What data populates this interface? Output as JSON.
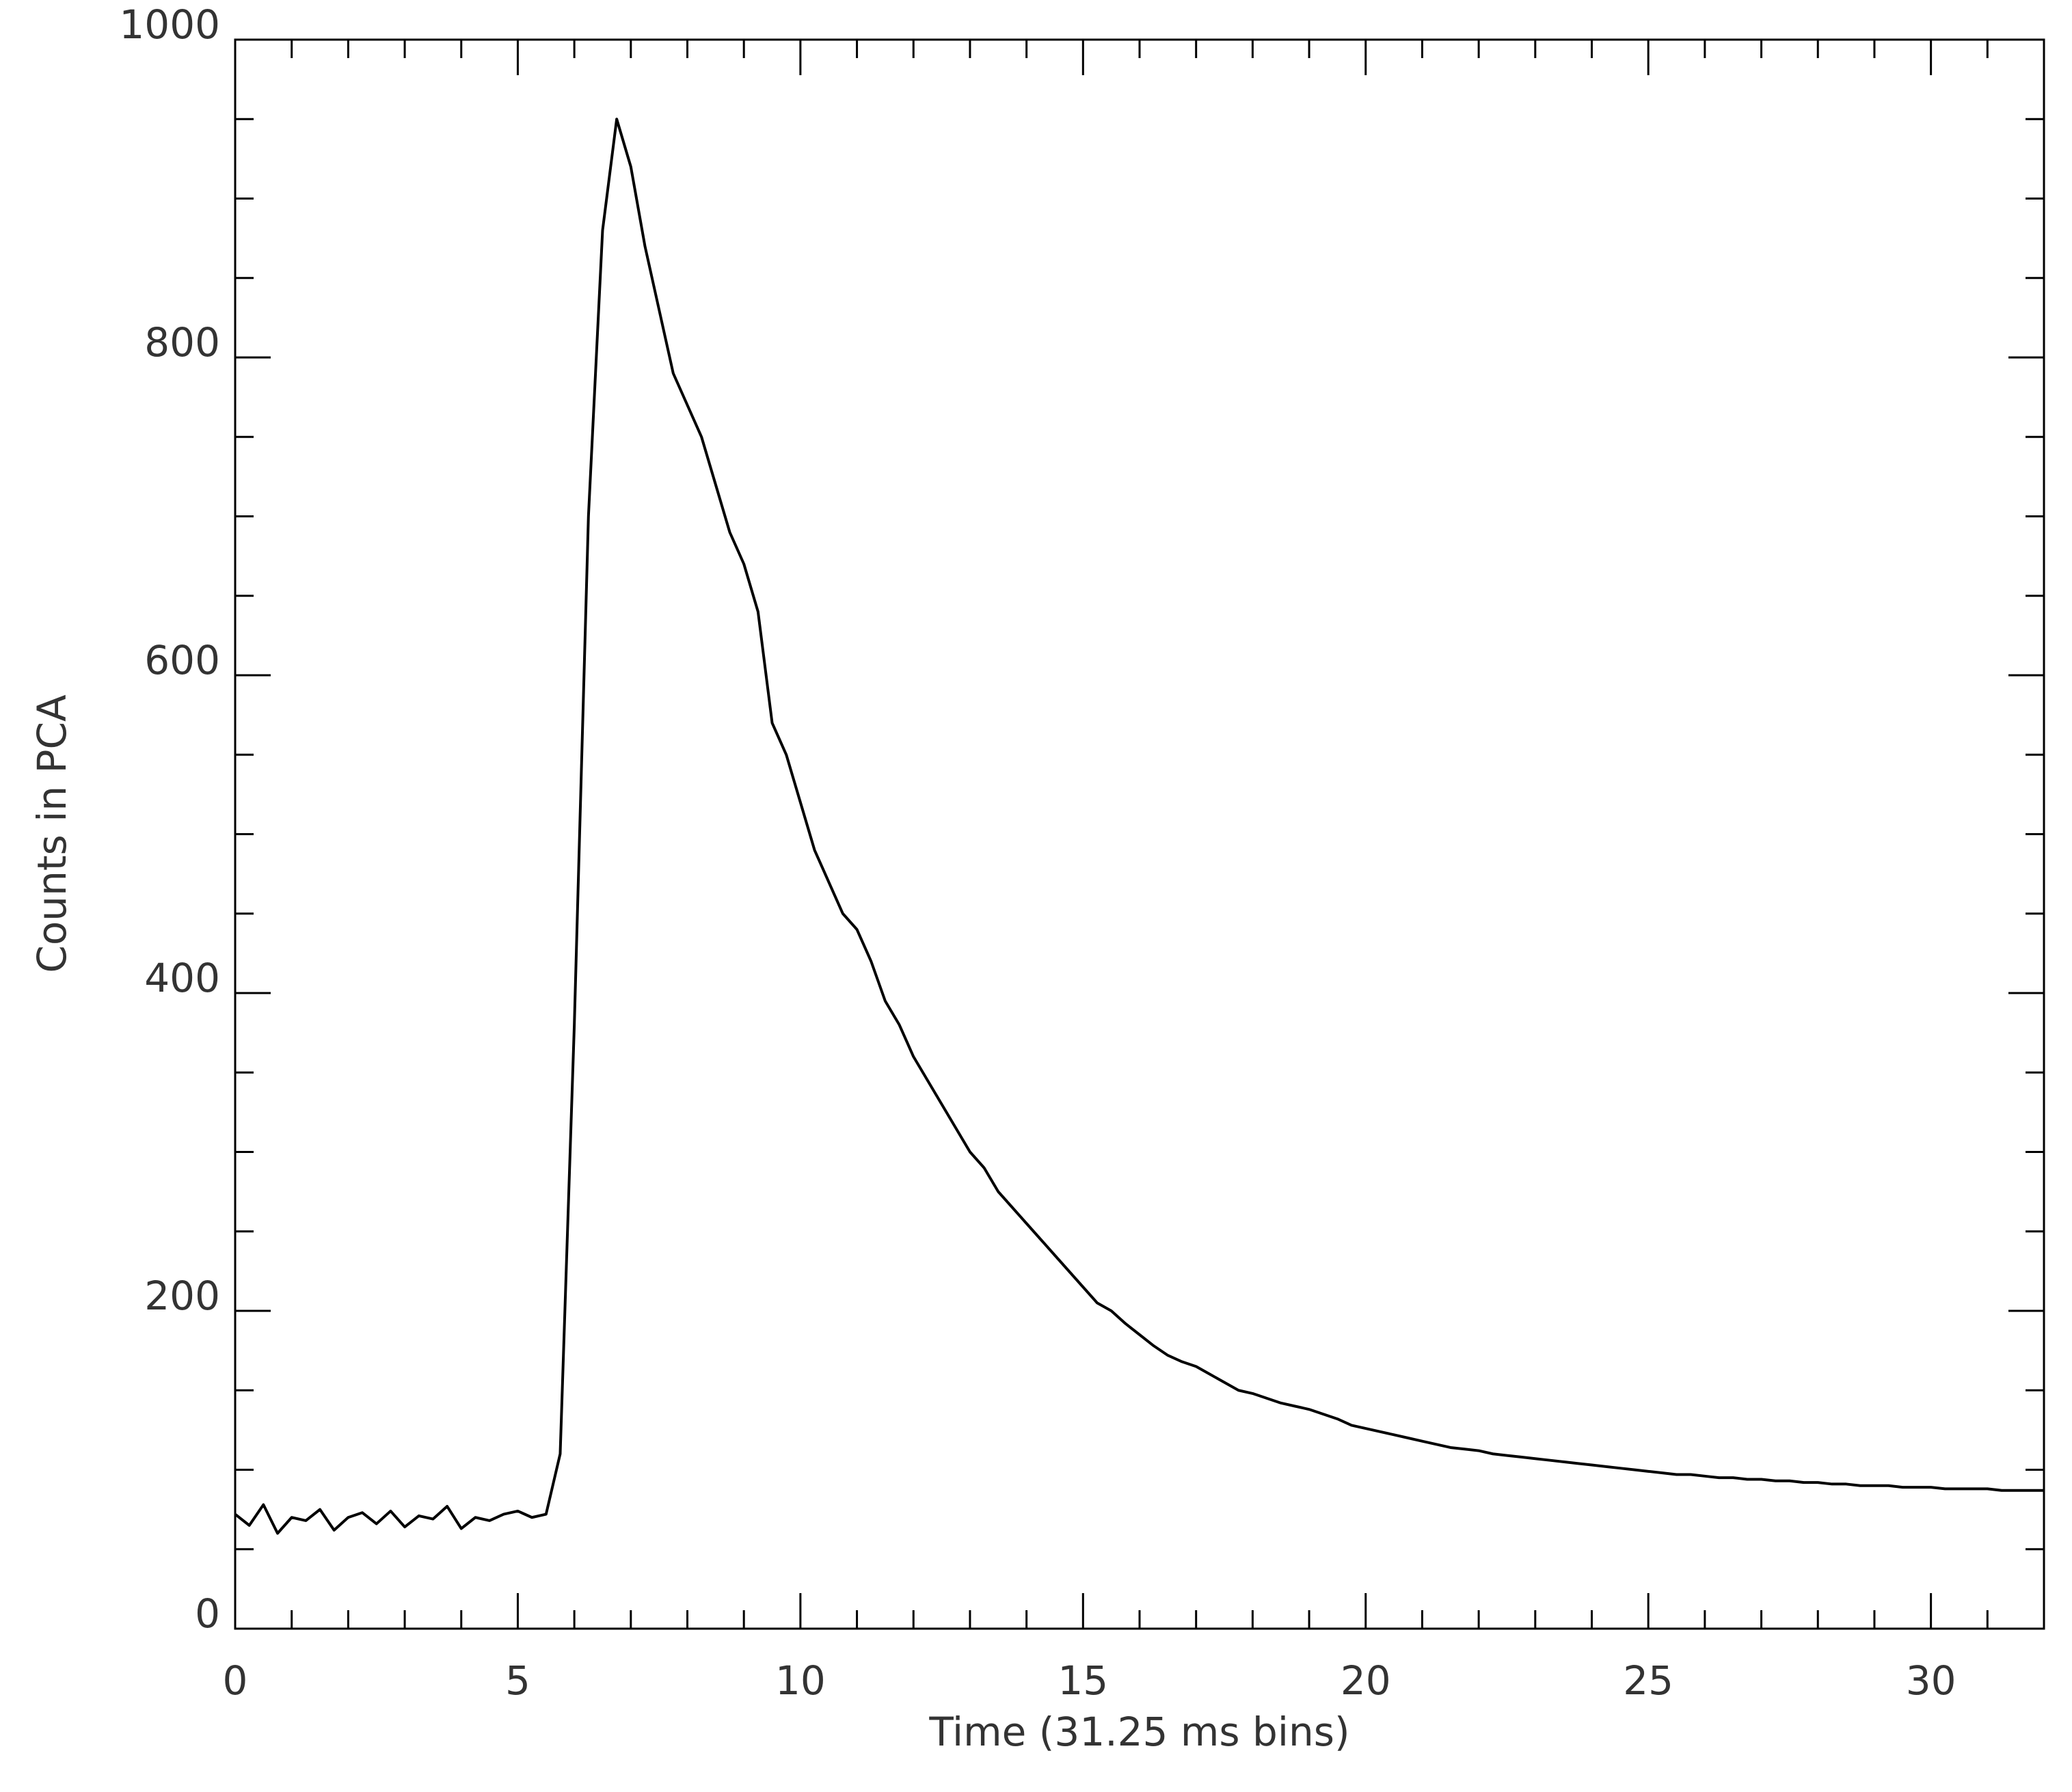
{
  "chart_data": {
    "type": "line",
    "x_label": "Time (31.25 ms bins)",
    "y_label": "Counts in PCA",
    "x": [
      0,
      0.25,
      0.5,
      0.75,
      1,
      1.25,
      1.5,
      1.75,
      2,
      2.25,
      2.5,
      2.75,
      3,
      3.25,
      3.5,
      3.75,
      4,
      4.25,
      4.5,
      4.75,
      5,
      5.25,
      5.5,
      5.75,
      6,
      6.25,
      6.5,
      6.75,
      7,
      7.25,
      7.5,
      7.75,
      8,
      8.25,
      8.5,
      8.75,
      9,
      9.25,
      9.5,
      9.75,
      10,
      10.25,
      10.5,
      10.75,
      11,
      11.25,
      11.5,
      11.75,
      12,
      12.25,
      12.5,
      12.75,
      13,
      13.25,
      13.5,
      13.75,
      14,
      14.25,
      14.5,
      14.75,
      15,
      15.25,
      15.5,
      15.75,
      16,
      16.25,
      16.5,
      16.75,
      17,
      17.25,
      17.5,
      17.75,
      18,
      18.25,
      18.5,
      18.75,
      19,
      19.25,
      19.5,
      19.75,
      20,
      20.25,
      20.5,
      20.75,
      21,
      21.25,
      21.5,
      21.75,
      22,
      22.25,
      22.5,
      22.75,
      23,
      23.25,
      23.5,
      23.75,
      24,
      24.25,
      24.5,
      24.75,
      25,
      25.25,
      25.5,
      25.75,
      26,
      26.25,
      26.5,
      26.75,
      27,
      27.25,
      27.5,
      27.75,
      28,
      28.25,
      28.5,
      28.75,
      29,
      29.25,
      29.5,
      29.75,
      30,
      30.25,
      30.5,
      30.75,
      31,
      31.25,
      31.5,
      31.75,
      32
    ],
    "series": [
      {
        "color": "#000000",
        "values": [
          72,
          65,
          78,
          60,
          70,
          68,
          75,
          62,
          70,
          73,
          66,
          74,
          64,
          71,
          69,
          77,
          63,
          70,
          68,
          72,
          74,
          70,
          72,
          110,
          380,
          700,
          880,
          950,
          920,
          870,
          830,
          790,
          770,
          750,
          720,
          690,
          670,
          640,
          570,
          550,
          520,
          490,
          470,
          450,
          440,
          420,
          395,
          380,
          360,
          345,
          330,
          315,
          300,
          290,
          275,
          265,
          255,
          245,
          235,
          225,
          215,
          205,
          200,
          192,
          185,
          178,
          172,
          168,
          165,
          160,
          155,
          150,
          148,
          145,
          142,
          140,
          138,
          135,
          132,
          128,
          126,
          124,
          122,
          120,
          118,
          116,
          114,
          113,
          112,
          110,
          109,
          108,
          107,
          106,
          105,
          104,
          103,
          102,
          101,
          100,
          99,
          98,
          97,
          97,
          96,
          95,
          95,
          94,
          94,
          93,
          93,
          92,
          92,
          91,
          91,
          90,
          90,
          90,
          89,
          89,
          89,
          88,
          88,
          88,
          88,
          87,
          87,
          87,
          87
        ]
      }
    ],
    "xlim": [
      0,
      32
    ],
    "ylim": [
      0,
      1000
    ],
    "xticks": [
      0,
      5,
      10,
      15,
      20,
      25,
      30
    ],
    "yticks": [
      0,
      200,
      400,
      600,
      800,
      1000
    ],
    "xminor": 5,
    "yminor": 4,
    "grid": false
  }
}
